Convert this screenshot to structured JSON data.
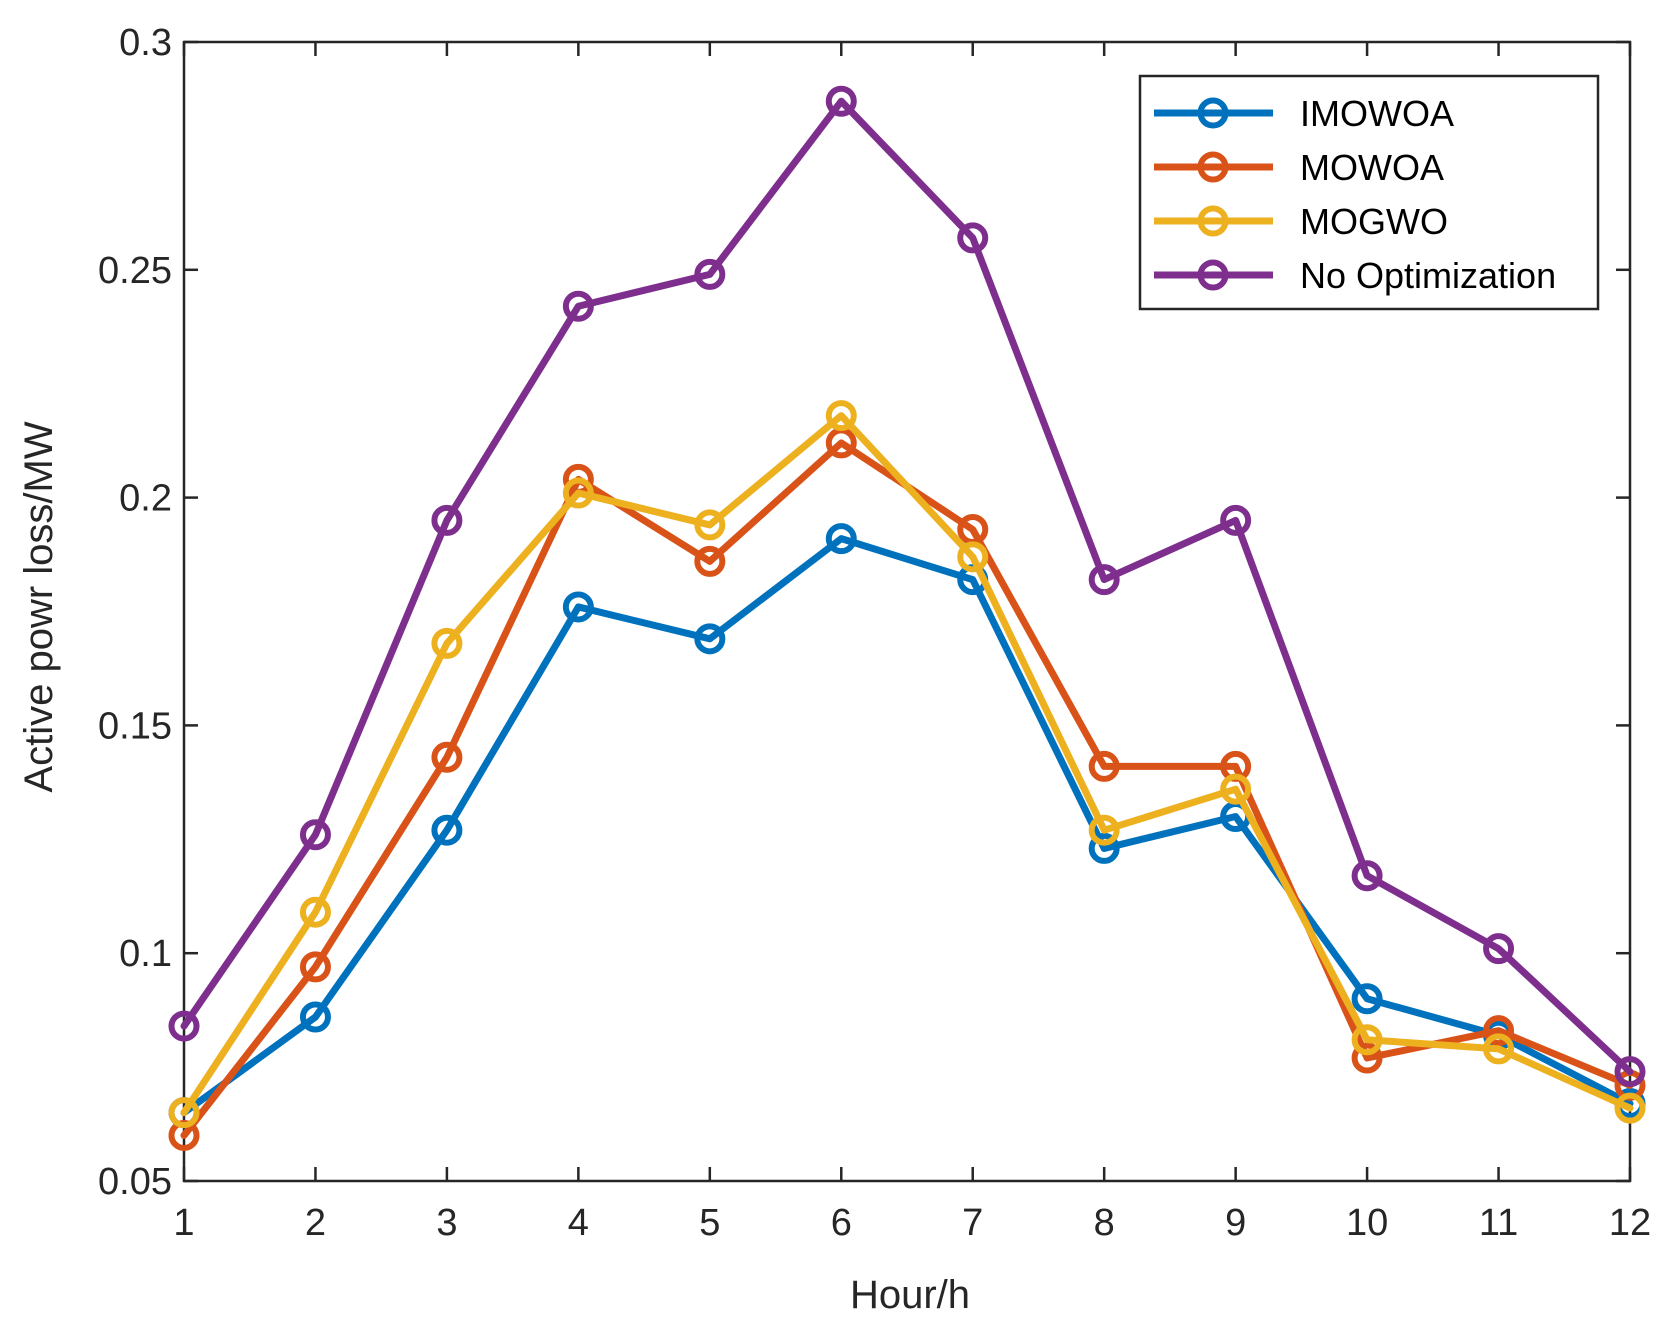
{
  "chart_data": {
    "type": "line",
    "title": "",
    "xlabel": "Hour/h",
    "ylabel": "Active powr loss/MW",
    "xlim": [
      1,
      12
    ],
    "ylim": [
      0.05,
      0.3
    ],
    "x": [
      1,
      2,
      3,
      4,
      5,
      6,
      7,
      8,
      9,
      10,
      11,
      12
    ],
    "xticks": [
      "1",
      "2",
      "3",
      "4",
      "5",
      "6",
      "7",
      "8",
      "9",
      "10",
      "11",
      "12"
    ],
    "yticks": [
      0.05,
      0.1,
      0.15,
      0.2,
      0.25,
      0.3
    ],
    "ytick_labels": [
      "0.05",
      "0.1",
      "0.15",
      "0.2",
      "0.25",
      "0.3"
    ],
    "grid": false,
    "legend_position": "top-right",
    "series": [
      {
        "name": "IMOWOA",
        "color": "#0072BD",
        "values": [
          0.065,
          0.086,
          0.127,
          0.176,
          0.169,
          0.191,
          0.182,
          0.123,
          0.13,
          0.09,
          0.082,
          0.067
        ]
      },
      {
        "name": "MOWOA",
        "color": "#D95319",
        "values": [
          0.06,
          0.097,
          0.143,
          0.204,
          0.186,
          0.212,
          0.193,
          0.141,
          0.141,
          0.077,
          0.083,
          0.071
        ]
      },
      {
        "name": "MOGWO",
        "color": "#EDB120",
        "values": [
          0.065,
          0.109,
          0.168,
          0.201,
          0.194,
          0.218,
          0.187,
          0.127,
          0.136,
          0.081,
          0.079,
          0.066
        ]
      },
      {
        "name": "No Optimization",
        "color": "#7E2F8E",
        "values": [
          0.084,
          0.126,
          0.195,
          0.242,
          0.249,
          0.287,
          0.257,
          0.182,
          0.195,
          0.117,
          0.101,
          0.074
        ]
      }
    ]
  }
}
